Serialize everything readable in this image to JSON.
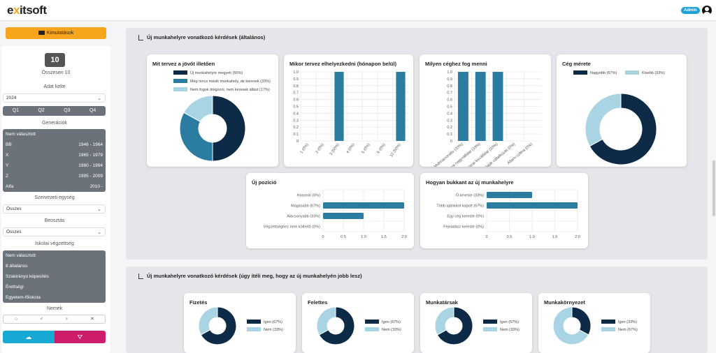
{
  "header": {
    "logo_pre": "e",
    "logo_x": "x",
    "logo_post": "itsoft",
    "admin_badge": "Admin"
  },
  "sidebar": {
    "button_label": "Kimutatások",
    "count": "10",
    "count_label": "Összesen 10",
    "date_label": "Adat kelte",
    "year_value": "2024",
    "quarters": [
      "Q1",
      "Q2",
      "Q3",
      "Q4"
    ],
    "generations_label": "Generációk",
    "generations": [
      {
        "name": "Nem választott",
        "range": ""
      },
      {
        "name": "BB",
        "range": "1946 - 1964"
      },
      {
        "name": "X",
        "range": "1965 - 1979"
      },
      {
        "name": "Y",
        "range": "1980 - 1994"
      },
      {
        "name": "Z",
        "range": "1995 - 2009"
      },
      {
        "name": "Alfa",
        "range": "2010 -"
      }
    ],
    "org_unit_label": "Szervezeti egység",
    "org_unit_value": "Összes",
    "position_label": "Beosztás",
    "position_value": "Összes",
    "education_label": "Iskolai végzettség",
    "education": [
      "Nem választott",
      "8 általános",
      "Szakirányú képesítés",
      "Érettségi",
      "Egyetem-főiskola"
    ],
    "gender_label": "Nemek",
    "gender_icons": [
      "○",
      "♂",
      "♀",
      "✕"
    ],
    "cloud_icon": "☁",
    "filter_icon": "⛛"
  },
  "section1": {
    "title": "Új munkahelyre vonatkozó kérdések (általános)"
  },
  "section2": {
    "title": "Új munkahelyre vonatkozó kérdések (úgy ítéli meg, hogy az új munkahelyén jobb lesz)"
  },
  "colors": {
    "dark": "#0d2a47",
    "mid": "#2b7ca1",
    "light": "#a9d4e3"
  },
  "chart_data": [
    {
      "id": "jovo",
      "type": "pie",
      "title": "Mit tervez a jövőt illetően",
      "legend": [
        {
          "name": "Új munkahelyre megyek (50%)",
          "value": 50,
          "color": "#0d2a47"
        },
        {
          "name": "Még nincs másik munkahely, de keresek (33%)",
          "value": 33,
          "color": "#2b7ca1"
        },
        {
          "name": "Nem fogok dolgozni, nem keresek állást (17%)",
          "value": 17,
          "color": "#a9d4e3"
        }
      ]
    },
    {
      "id": "mikor",
      "type": "bar",
      "title": "Mikor tervez elhelyezkedni (hónapon belül)",
      "categories": [
        "1 (0%)",
        "2 (0%)",
        "3 (50%)",
        "4 (0%)",
        "5 (0%)",
        "6 (0%)",
        "12 (50%)"
      ],
      "values": [
        0,
        0,
        1,
        0,
        0,
        0,
        1
      ],
      "ylim": [
        0,
        1
      ],
      "yticks": [
        "0",
        "0.1",
        "0.2",
        "0.3",
        "0.4",
        "0.5",
        "0.6",
        "0.7",
        "0.8",
        "0.9",
        "1.0"
      ]
    },
    {
      "id": "ceg",
      "type": "bar",
      "title": "Milyen céghez fog menni",
      "categories": [
        "Multinacionális (33%)",
        "Hazai nagyvállalat (33%)",
        "Hazai kisvállalat (33%)",
        "Saját vállalkozás (0%)",
        "Állami szféra (0%)"
      ],
      "values": [
        1,
        1,
        1,
        0,
        0
      ],
      "ylim": [
        0,
        1
      ],
      "yticks": [
        "0",
        "0.1",
        "0.2",
        "0.3",
        "0.4",
        "0.5",
        "0.6",
        "0.7",
        "0.8",
        "0.9",
        "1.0"
      ]
    },
    {
      "id": "meret",
      "type": "pie",
      "title": "Cég mérete",
      "legend": [
        {
          "name": "Nagyobb (67%)",
          "value": 67,
          "color": "#0d2a47"
        },
        {
          "name": "Kisebb (33%)",
          "value": 33,
          "color": "#a9d4e3"
        }
      ]
    },
    {
      "id": "pozicio",
      "type": "bar",
      "orientation": "horizontal",
      "title": "Új pozíció",
      "categories": [
        "Hasonló (0%)",
        "Magasabb (67%)",
        "Alacsonyabb (33%)",
        "Végzettséghez nem köthető (0%)"
      ],
      "values": [
        0,
        2,
        1,
        0
      ],
      "xlim": [
        0,
        2
      ],
      "xticks": [
        "0",
        "0.5",
        "1.0",
        "1.5",
        "2.0"
      ]
    },
    {
      "id": "bukkant",
      "type": "bar",
      "orientation": "horizontal",
      "title": "Hogyan bukkant az új munkahelyre",
      "categories": [
        "Ő kereste (33%)",
        "Több ajánlatot kapott (67%)",
        "Egy cég kereste (0%)",
        "Fejvadász kereste (0%)"
      ],
      "values": [
        1,
        2,
        0,
        0
      ],
      "xlim": [
        0,
        2
      ],
      "xticks": [
        "0",
        "0.5",
        "1.0",
        "1.5",
        "2.0"
      ]
    },
    {
      "id": "fizetes",
      "type": "pie",
      "title": "Fizetés",
      "legend": [
        {
          "name": "Igen (67%)",
          "value": 67,
          "color": "#0d2a47"
        },
        {
          "name": "Nem (33%)",
          "value": 33,
          "color": "#a9d4e3"
        }
      ]
    },
    {
      "id": "felettes",
      "type": "pie",
      "title": "Felettes",
      "legend": [
        {
          "name": "Igen (67%)",
          "value": 67,
          "color": "#0d2a47"
        },
        {
          "name": "Nem (33%)",
          "value": 33,
          "color": "#a9d4e3"
        }
      ]
    },
    {
      "id": "munkatarsak",
      "type": "pie",
      "title": "Munkatársak",
      "legend": [
        {
          "name": "Igen (67%)",
          "value": 67,
          "color": "#0d2a47"
        },
        {
          "name": "Nem (33%)",
          "value": 33,
          "color": "#a9d4e3"
        }
      ]
    },
    {
      "id": "kornyezet",
      "type": "pie",
      "title": "Munkakörnyezet",
      "legend": [
        {
          "name": "Igen (33%)",
          "value": 33,
          "color": "#0d2a47"
        },
        {
          "name": "Nem (67%)",
          "value": 67,
          "color": "#a9d4e3"
        }
      ]
    }
  ]
}
